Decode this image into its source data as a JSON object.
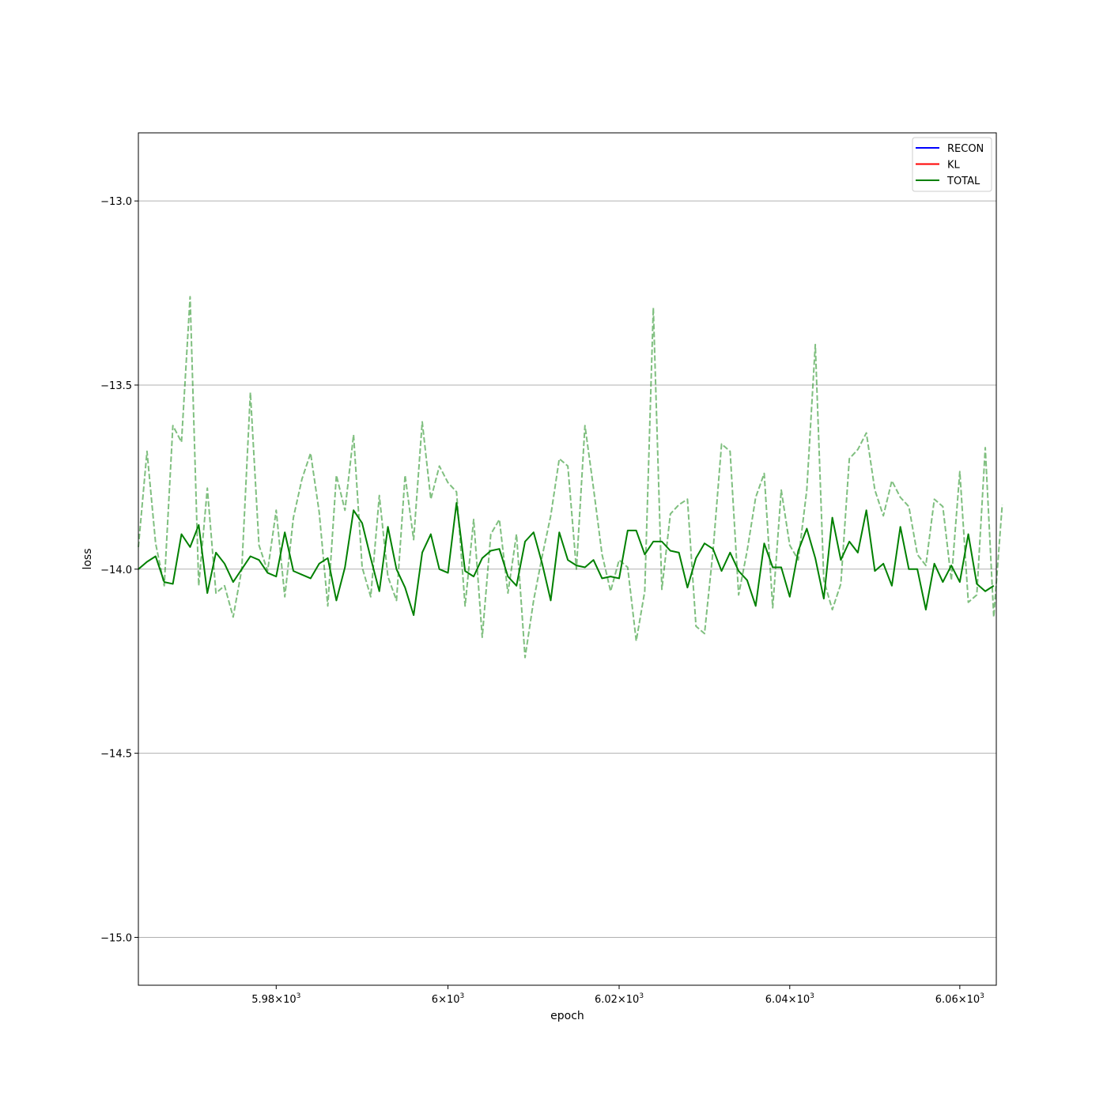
{
  "chart_data": {
    "type": "line",
    "title": "",
    "xlabel": "epoch",
    "ylabel": "loss",
    "xscale": "log",
    "x_range": [
      5964,
      6064.3
    ],
    "ylim": [
      -15.13,
      -12.815
    ],
    "grid": "y",
    "legend_position": "top-right",
    "x_ticks": [
      {
        "value": 5980,
        "mantissa": "5.98",
        "exp": "3"
      },
      {
        "value": 6000,
        "mantissa": "6",
        "exp": "3"
      },
      {
        "value": 6020,
        "mantissa": "6.02",
        "exp": "3"
      },
      {
        "value": 6040,
        "mantissa": "6.04",
        "exp": "3"
      },
      {
        "value": 6060,
        "mantissa": "6.06",
        "exp": "3"
      }
    ],
    "y_ticks": [
      {
        "value": -13.0,
        "label": "−13.0"
      },
      {
        "value": -13.5,
        "label": "−13.5"
      },
      {
        "value": -14.0,
        "label": "−14.0"
      },
      {
        "value": -14.5,
        "label": "−14.5"
      },
      {
        "value": -15.0,
        "label": "−15.0"
      }
    ],
    "legend": [
      {
        "label": "RECON",
        "color": "#0000ff"
      },
      {
        "label": "KL",
        "color": "#ff0000"
      },
      {
        "label": "TOTAL",
        "color": "#008000"
      }
    ],
    "x_start": 5964,
    "x_step": 1,
    "series": [
      {
        "name": "TOTAL",
        "color": "#008000",
        "style": "solid",
        "values": [
          -14.0,
          -13.98,
          -13.965,
          -14.035,
          -14.04,
          -13.905,
          -13.94,
          -13.88,
          -14.065,
          -13.955,
          -13.985,
          -14.035,
          -14.0,
          -13.965,
          -13.975,
          -14.01,
          -14.02,
          -13.9,
          -14.005,
          -14.015,
          -14.025,
          -13.985,
          -13.97,
          -14.085,
          -13.995,
          -13.84,
          -13.875,
          -13.97,
          -14.06,
          -13.885,
          -14.0,
          -14.05,
          -14.125,
          -13.955,
          -13.905,
          -14.0,
          -14.01,
          -13.82,
          -14.005,
          -14.02,
          -13.97,
          -13.95,
          -13.945,
          -14.02,
          -14.045,
          -13.925,
          -13.9,
          -13.985,
          -14.085,
          -13.9,
          -13.975,
          -13.99,
          -13.995,
          -13.975,
          -14.025,
          -14.02,
          -14.025,
          -13.895,
          -13.895,
          -13.96,
          -13.925,
          -13.925,
          -13.95,
          -13.955,
          -14.05,
          -13.97,
          -13.93,
          -13.945,
          -14.005,
          -13.955,
          -14.005,
          -14.03,
          -14.1,
          -13.93,
          -13.995,
          -13.995,
          -14.075,
          -13.95,
          -13.89,
          -13.97,
          -14.08,
          -13.86,
          -13.975,
          -13.925,
          -13.955,
          -13.84,
          -14.005,
          -13.985,
          -14.045,
          -13.885,
          -14.0,
          -14.0,
          -14.11,
          -13.985,
          -14.035,
          -13.99,
          -14.035,
          -13.905,
          -14.04,
          -14.06,
          -14.045
        ]
      },
      {
        "name": "",
        "color": "#008000",
        "style": "dashed",
        "values": [
          -13.94,
          -13.68,
          -13.93,
          -14.045,
          -13.61,
          -13.655,
          -13.26,
          -14.045,
          -13.78,
          -14.065,
          -14.045,
          -14.13,
          -14.0,
          -13.52,
          -13.935,
          -14.005,
          -13.84,
          -14.075,
          -13.86,
          -13.755,
          -13.685,
          -13.845,
          -14.1,
          -13.745,
          -13.84,
          -13.635,
          -13.995,
          -14.075,
          -13.8,
          -14.02,
          -14.085,
          -13.745,
          -13.92,
          -13.6,
          -13.81,
          -13.72,
          -13.765,
          -13.79,
          -14.1,
          -13.865,
          -14.185,
          -13.905,
          -13.865,
          -14.065,
          -13.905,
          -14.24,
          -14.085,
          -13.965,
          -13.855,
          -13.7,
          -13.72,
          -14.0,
          -13.61,
          -13.78,
          -13.96,
          -14.06,
          -13.975,
          -13.995,
          -14.195,
          -14.06,
          -13.29,
          -14.055,
          -13.85,
          -13.825,
          -13.81,
          -14.155,
          -14.175,
          -13.95,
          -13.66,
          -13.68,
          -14.07,
          -13.95,
          -13.805,
          -13.74,
          -14.105,
          -13.785,
          -13.935,
          -13.975,
          -13.785,
          -13.39,
          -14.03,
          -14.11,
          -14.04,
          -13.7,
          -13.675,
          -13.63,
          -13.785,
          -13.855,
          -13.76,
          -13.805,
          -13.83,
          -13.96,
          -13.99,
          -13.81,
          -13.83,
          -14.03,
          -13.735,
          -14.09,
          -14.07,
          -13.67,
          -14.13,
          -13.825
        ]
      }
    ]
  }
}
